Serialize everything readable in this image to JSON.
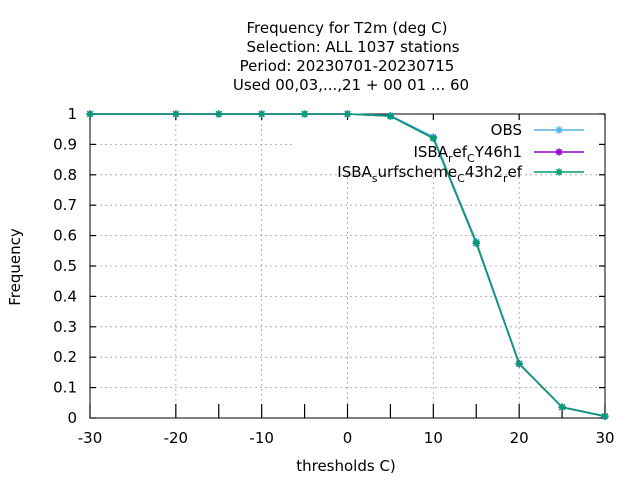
{
  "chart_data": {
    "type": "line",
    "title_lines": [
      "Frequency  for T2m (deg C)",
      "Selection: ALL   1037 stations",
      "Period: 20230701-20230715",
      "Used  00,03,...,21  + 00 01 ... 60"
    ],
    "xlabel": "thresholds C)",
    "ylabel": "Frequency",
    "xlim": [
      -30,
      30
    ],
    "ylim": [
      0,
      1
    ],
    "xticks": [
      "-30",
      "-20",
      "-10",
      "0",
      "10",
      "20",
      "30"
    ],
    "xtick_values": [
      -30,
      -20,
      -10,
      0,
      10,
      20,
      30
    ],
    "yticks": [
      "0",
      "0.1",
      "0.2",
      "0.3",
      "0.4",
      "0.5",
      "0.6",
      "0.7",
      "0.8",
      "0.9",
      "1"
    ],
    "ytick_values": [
      0,
      0.1,
      0.2,
      0.3,
      0.4,
      0.5,
      0.6,
      0.7,
      0.8,
      0.9,
      1
    ],
    "minor_xtick_values": [
      -15,
      -5,
      5,
      15,
      25
    ],
    "grid": true,
    "legend_position": "top-right",
    "x": [
      -30,
      -20,
      -15,
      -10,
      -5,
      0,
      5,
      10,
      15,
      20,
      25,
      30
    ],
    "series": [
      {
        "legend": [
          "OBS"
        ],
        "color": "#56b4e9",
        "values": [
          1.0,
          1.0,
          1.0,
          1.0,
          1.0,
          1.0,
          0.995,
          0.925,
          0.58,
          0.18,
          0.035,
          0.005
        ]
      },
      {
        "legend": [
          "ISBA",
          "r",
          "ef",
          "C",
          "Y46h1"
        ],
        "color": "#9400d3",
        "values": [
          1.0,
          1.0,
          1.0,
          1.0,
          1.0,
          1.0,
          0.993,
          0.92,
          0.575,
          0.178,
          0.036,
          0.006
        ]
      },
      {
        "legend": [
          "ISBA",
          "s",
          "urfscheme",
          "C",
          "43h2",
          "r",
          "ef"
        ],
        "color": "#009e73",
        "values": [
          1.0,
          1.0,
          1.0,
          1.0,
          1.0,
          1.0,
          0.993,
          0.92,
          0.575,
          0.178,
          0.036,
          0.006
        ]
      }
    ]
  }
}
